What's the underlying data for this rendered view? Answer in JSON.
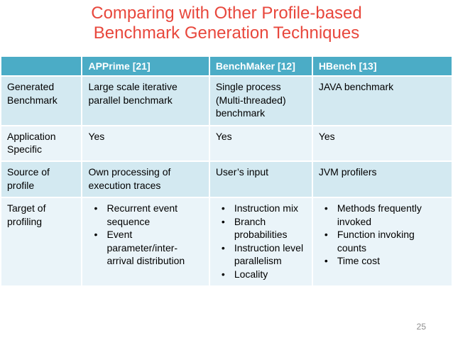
{
  "slide": {
    "title_line1": "Comparing with Other Profile-based",
    "title_line2": "Benchmark Generation Techniques",
    "page_number": "25"
  },
  "colors": {
    "title_color": "#e8473c",
    "header_bg": "#4bacc6",
    "band_a": "#d3e9f1",
    "band_b": "#eaf4f9",
    "text_color": "#000000",
    "page_num_color": "#8f8f8f"
  },
  "table": {
    "columns": [
      "",
      "APPrime [21]",
      "BenchMaker [12]",
      "HBench [13]"
    ],
    "rows": [
      {
        "label": "Generated Benchmark",
        "cells": [
          {
            "type": "text",
            "text": "Large scale iterative parallel benchmark"
          },
          {
            "type": "text",
            "text": "Single process (Multi-threaded) benchmark"
          },
          {
            "type": "text",
            "text": "JAVA benchmark"
          }
        ]
      },
      {
        "label": "Application Specific",
        "cells": [
          {
            "type": "text",
            "text": "Yes"
          },
          {
            "type": "text",
            "text": "Yes"
          },
          {
            "type": "text",
            "text": "Yes"
          }
        ]
      },
      {
        "label": "Source of profile",
        "cells": [
          {
            "type": "text",
            "text": "Own processing of execution traces"
          },
          {
            "type": "text",
            "text": "User’s input"
          },
          {
            "type": "text",
            "text": "JVM profilers"
          }
        ]
      },
      {
        "label": "Target of profiling",
        "cells": [
          {
            "type": "bullets",
            "items": [
              "Recurrent event sequence",
              "Event parameter/inter-arrival distribution"
            ]
          },
          {
            "type": "bullets",
            "items": [
              "Instruction mix",
              "Branch probabilities",
              "Instruction level parallelism",
              "Locality"
            ]
          },
          {
            "type": "bullets",
            "items": [
              "Methods frequently invoked",
              "Function invoking counts",
              "Time cost"
            ]
          }
        ]
      }
    ]
  }
}
